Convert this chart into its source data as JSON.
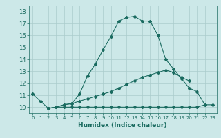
{
  "xlabel": "Humidex (Indice chaleur)",
  "bg_color": "#cce8e8",
  "grid_color": "#aacccc",
  "line_color": "#1a6b60",
  "xlim": [
    -0.5,
    23.5
  ],
  "ylim": [
    9.5,
    18.5
  ],
  "xticks": [
    0,
    1,
    2,
    3,
    4,
    5,
    6,
    7,
    8,
    9,
    10,
    11,
    12,
    13,
    14,
    15,
    16,
    17,
    18,
    19,
    20,
    21,
    22,
    23
  ],
  "yticks": [
    10,
    11,
    12,
    13,
    14,
    15,
    16,
    17,
    18
  ],
  "line1_x": [
    0,
    1,
    2,
    3,
    4,
    5,
    6,
    7,
    8,
    9,
    10,
    11,
    12,
    13,
    14,
    15,
    16,
    17,
    18,
    19,
    20,
    21,
    22
  ],
  "line1_y": [
    11.1,
    10.5,
    9.9,
    10.0,
    10.2,
    10.3,
    11.1,
    12.6,
    13.6,
    14.8,
    15.9,
    17.2,
    17.5,
    17.6,
    17.2,
    17.2,
    16.0,
    14.0,
    13.2,
    12.4,
    11.6,
    11.3,
    10.2
  ],
  "line2_x": [
    2,
    3,
    4,
    5,
    6,
    7,
    8,
    9,
    10,
    11,
    12,
    13,
    14,
    15,
    16,
    17,
    18,
    19,
    20
  ],
  "line2_y": [
    9.9,
    10.0,
    10.2,
    10.3,
    10.5,
    10.7,
    10.9,
    11.1,
    11.3,
    11.6,
    11.9,
    12.2,
    12.5,
    12.7,
    12.9,
    13.1,
    12.9,
    12.5,
    12.2
  ],
  "line3_x": [
    2,
    3,
    4,
    5,
    6,
    7,
    8,
    9,
    10,
    11,
    12,
    13,
    14,
    15,
    16,
    17,
    18,
    19,
    20,
    21,
    22,
    23
  ],
  "line3_y": [
    9.9,
    10.0,
    10.0,
    10.0,
    10.0,
    10.0,
    10.0,
    10.0,
    10.0,
    10.0,
    10.0,
    10.0,
    10.0,
    10.0,
    10.0,
    10.0,
    10.0,
    10.0,
    10.0,
    10.0,
    10.2,
    10.2
  ]
}
